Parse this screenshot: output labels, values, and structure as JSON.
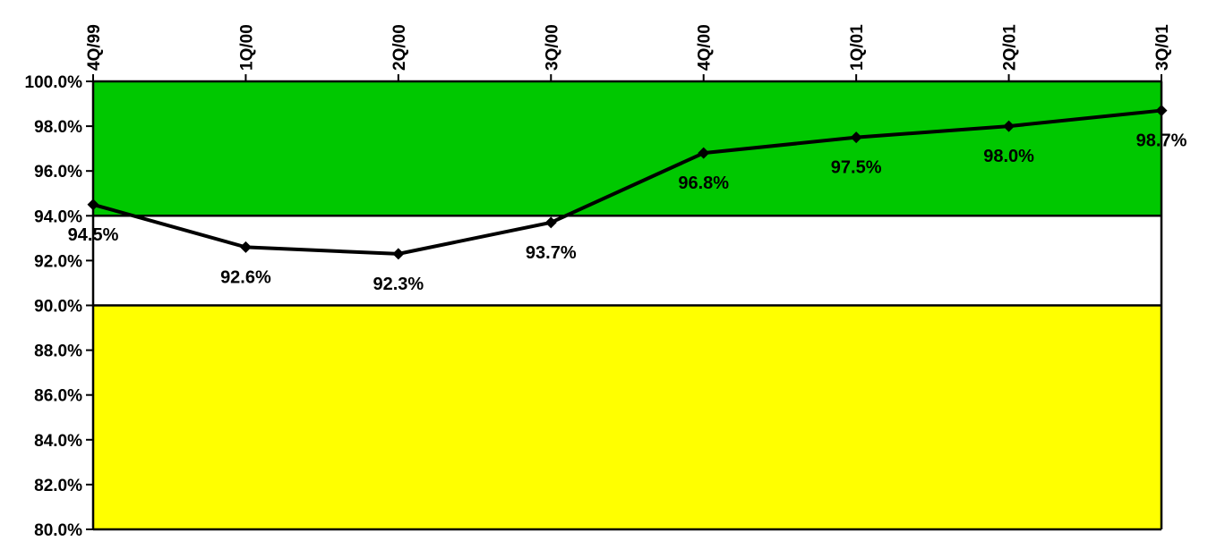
{
  "chart_data": {
    "type": "line",
    "title": "",
    "xlabel": "",
    "ylabel": "",
    "categories": [
      "4Q/99",
      "1Q/00",
      "2Q/00",
      "3Q/00",
      "4Q/00",
      "1Q/01",
      "2Q/01",
      "3Q/01"
    ],
    "series": [
      {
        "values": [
          94.5,
          92.6,
          92.3,
          93.7,
          96.8,
          97.5,
          98.0,
          98.7
        ],
        "data_labels": [
          "94.5%",
          "92.6%",
          "92.3%",
          "93.7%",
          "96.8%",
          "97.5%",
          "98.0%",
          "98.7%"
        ],
        "color": "#000000",
        "marker": "diamond"
      }
    ],
    "ylim": [
      80.0,
      100.0
    ],
    "y_ticks": [
      80,
      82,
      84,
      86,
      88,
      90,
      92,
      94,
      96,
      98,
      100
    ],
    "y_tick_labels": [
      "80.0%",
      "82.0%",
      "84.0%",
      "86.0%",
      "88.0%",
      "90.0%",
      "92.0%",
      "94.0%",
      "96.0%",
      "98.0%",
      "100.0%"
    ],
    "x_axis_position": "top",
    "x_tick_label_rotation": "vertical",
    "grid": false,
    "legend": "none",
    "bands": [
      {
        "from": 94.0,
        "to": 100.0,
        "color": "#00c800"
      },
      {
        "from": 90.0,
        "to": 94.0,
        "color": "#ffffff"
      },
      {
        "from": 80.0,
        "to": 90.0,
        "color": "#ffff00"
      }
    ]
  }
}
